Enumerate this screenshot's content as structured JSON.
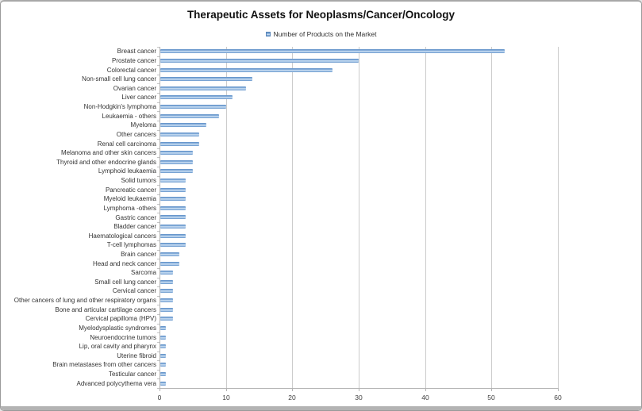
{
  "chart_data": {
    "type": "bar",
    "orientation": "horizontal",
    "title": "Therapeutic Assets for Neoplasms/Cancer/Oncology",
    "legend_label": "Number of Products on the Market",
    "legend_position": "top",
    "series_name": "Number of Products on the Market",
    "categories": [
      "Breast cancer",
      "Prostate cancer",
      "Colorectal cancer",
      "Non-small cell lung cancer",
      "Ovarian cancer",
      "Liver cancer",
      "Non-Hodgkin's lymphoma",
      "Leukaemia - others",
      "Myeloma",
      "Other cancers",
      "Renal cell carcinoma",
      "Melanoma and other skin cancers",
      "Thyroid and other endocrine glands",
      "Lymphoid leukaemia",
      "Solid tumors",
      "Pancreatic cancer",
      "Myeloid leukaemia",
      "Lymphoma -others",
      "Gastric cancer",
      "Bladder cancer",
      "Haematological cancers",
      "T-cell lymphomas",
      "Brain cancer",
      "Head and neck cancer",
      "Sarcoma",
      "Small cell lung cancer",
      "Cervical cancer",
      "Other cancers of lung and other respiratory organs",
      "Bone and articular cartilage cancers",
      "Cervical papilloma (HPV)",
      "Myelodysplastic syndromes",
      "Neuroendocrine tumors",
      "Lip, oral cavity and pharynx",
      "Uterine fibroid",
      "Brain metastases from other cancers",
      "Testicular cancer",
      "Advanced polycythema vera"
    ],
    "values": [
      52,
      30,
      26,
      14,
      13,
      11,
      10,
      9,
      7,
      6,
      6,
      5,
      5,
      5,
      4,
      4,
      4,
      4,
      4,
      4,
      4,
      4,
      3,
      3,
      2,
      2,
      2,
      2,
      2,
      2,
      1,
      1,
      1,
      1,
      1,
      1,
      1
    ],
    "xlabel": "",
    "ylabel": "",
    "xlim": [
      0,
      60
    ],
    "xticks": [
      0,
      10,
      20,
      30,
      40,
      50,
      60
    ],
    "grid": "vertical-only",
    "bar_color": "#7ca6d6"
  }
}
